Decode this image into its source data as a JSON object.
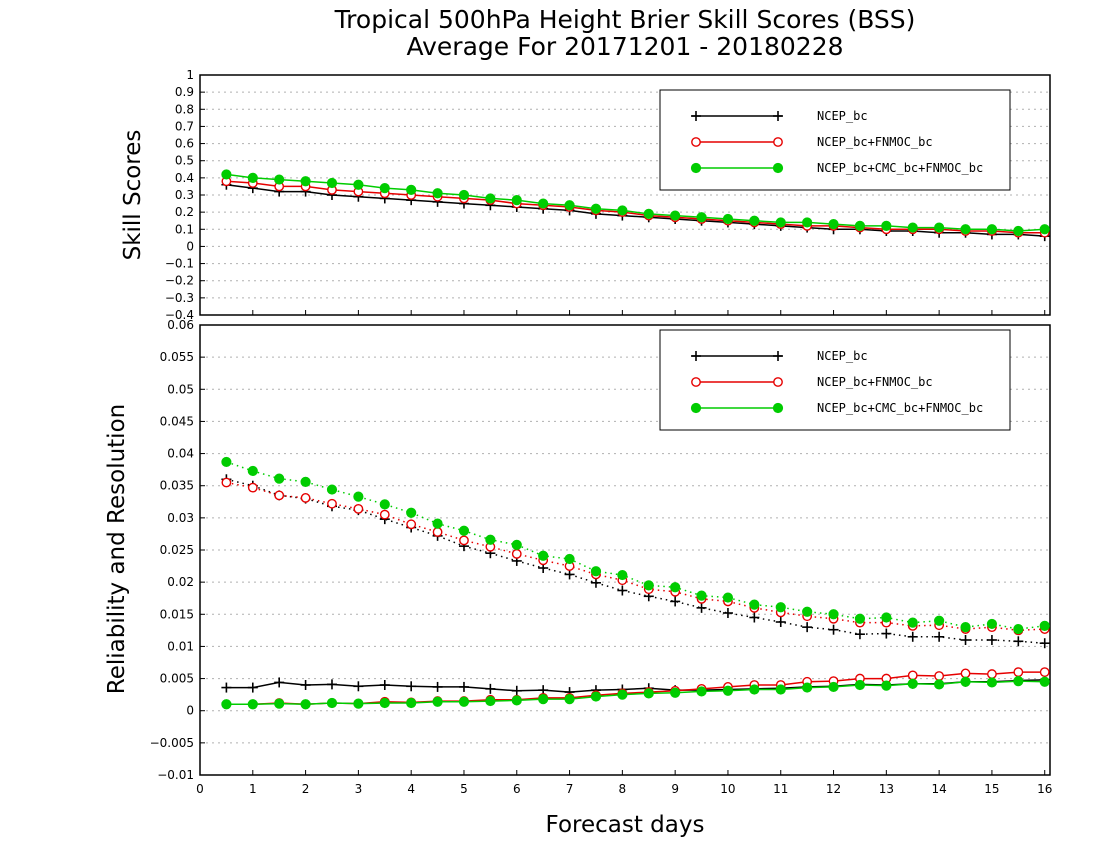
{
  "title_line1": "Tropical 500hPa Height Brier Skill Scores (BSS)",
  "title_line2": "Average For 20171201 - 20180228",
  "x_axis_label": "Forecast days",
  "top_panel_ylabel": "Skill Scores",
  "bottom_panel_ylabel": "Reliability and Resolution",
  "chart_data": [
    {
      "type": "line",
      "xlim": [
        0,
        16.1
      ],
      "ylim": [
        -0.4,
        1
      ],
      "xticks": [
        0,
        1,
        2,
        3,
        4,
        5,
        6,
        7,
        8,
        9,
        10,
        11,
        12,
        13,
        14,
        15,
        16
      ],
      "yticks": [
        -0.4,
        -0.3,
        -0.2,
        -0.1,
        0,
        0.1,
        0.2,
        0.3,
        0.4,
        0.5,
        0.6,
        0.7,
        0.8,
        0.9,
        1
      ],
      "ylabel": "Skill Scores",
      "xlabel": "Forecast days",
      "grid": true,
      "legend_position": "top-right",
      "x": [
        0.5,
        1,
        1.5,
        2,
        2.5,
        3,
        3.5,
        4,
        4.5,
        5,
        5.5,
        6,
        6.5,
        7,
        7.5,
        8,
        8.5,
        9,
        9.5,
        10,
        10.5,
        11,
        11.5,
        12,
        12.5,
        13,
        13.5,
        14,
        14.5,
        15,
        15.5,
        16
      ],
      "series": [
        {
          "name": "NCEP_bc",
          "color": "#000000",
          "marker": "plus",
          "line": "solid",
          "values": [
            0.36,
            0.34,
            0.32,
            0.32,
            0.3,
            0.29,
            0.28,
            0.27,
            0.26,
            0.25,
            0.24,
            0.23,
            0.22,
            0.21,
            0.19,
            0.18,
            0.17,
            0.16,
            0.15,
            0.14,
            0.13,
            0.12,
            0.11,
            0.1,
            0.1,
            0.09,
            0.09,
            0.08,
            0.08,
            0.07,
            0.07,
            0.06
          ]
        },
        {
          "name": "NCEP_bc+FNMOC_bc",
          "color": "#e60000",
          "marker": "open-circle",
          "line": "solid",
          "values": [
            0.38,
            0.37,
            0.35,
            0.35,
            0.33,
            0.32,
            0.31,
            0.3,
            0.29,
            0.28,
            0.27,
            0.25,
            0.24,
            0.23,
            0.21,
            0.2,
            0.18,
            0.17,
            0.16,
            0.15,
            0.14,
            0.13,
            0.12,
            0.12,
            0.11,
            0.1,
            0.1,
            0.1,
            0.09,
            0.09,
            0.08,
            0.08
          ]
        },
        {
          "name": "NCEP_bc+CMC_bc+FNMOC_bc",
          "color": "#00cc00",
          "marker": "filled-circle",
          "line": "solid",
          "values": [
            0.42,
            0.4,
            0.39,
            0.38,
            0.37,
            0.36,
            0.34,
            0.33,
            0.31,
            0.3,
            0.28,
            0.27,
            0.25,
            0.24,
            0.22,
            0.21,
            0.19,
            0.18,
            0.17,
            0.16,
            0.15,
            0.14,
            0.14,
            0.13,
            0.12,
            0.12,
            0.11,
            0.11,
            0.1,
            0.1,
            0.09,
            0.1
          ]
        }
      ]
    },
    {
      "type": "line",
      "xlim": [
        0,
        16.1
      ],
      "ylim": [
        -0.01,
        0.06
      ],
      "xticks": [
        0,
        1,
        2,
        3,
        4,
        5,
        6,
        7,
        8,
        9,
        10,
        11,
        12,
        13,
        14,
        15,
        16
      ],
      "yticks": [
        -0.01,
        -0.005,
        0,
        0.005,
        0.01,
        0.015,
        0.02,
        0.025,
        0.03,
        0.035,
        0.04,
        0.045,
        0.05,
        0.055,
        0.06
      ],
      "ylabel": "Reliability and Resolution",
      "xlabel": "Forecast days",
      "grid": true,
      "legend_position": "top-right",
      "x": [
        0.5,
        1,
        1.5,
        2,
        2.5,
        3,
        3.5,
        4,
        4.5,
        5,
        5.5,
        6,
        6.5,
        7,
        7.5,
        8,
        8.5,
        9,
        9.5,
        10,
        10.5,
        11,
        11.5,
        12,
        12.5,
        13,
        13.5,
        14,
        14.5,
        15,
        15.5,
        16
      ],
      "series": [
        {
          "name": "NCEP_bc",
          "color": "#000000",
          "marker": "plus",
          "line": "dotted",
          "values": [
            0.036,
            0.035,
            0.0335,
            0.033,
            0.0318,
            0.0312,
            0.0298,
            0.0285,
            0.0272,
            0.0256,
            0.0245,
            0.0233,
            0.0222,
            0.0212,
            0.0199,
            0.0187,
            0.0178,
            0.017,
            0.016,
            0.0152,
            0.0145,
            0.0138,
            0.013,
            0.0126,
            0.0119,
            0.012,
            0.0115,
            0.0115,
            0.011,
            0.011,
            0.0108,
            0.0105
          ]
        },
        {
          "name": "NCEP_bc+FNMOC_bc",
          "color": "#e60000",
          "marker": "open-circle",
          "line": "dotted",
          "values": [
            0.0355,
            0.0347,
            0.0335,
            0.0331,
            0.0322,
            0.0314,
            0.0305,
            0.029,
            0.0278,
            0.0265,
            0.0255,
            0.0244,
            0.0234,
            0.0225,
            0.0212,
            0.0203,
            0.0189,
            0.0185,
            0.0174,
            0.017,
            0.016,
            0.0153,
            0.0147,
            0.0143,
            0.0137,
            0.0137,
            0.0132,
            0.0133,
            0.0127,
            0.013,
            0.0125,
            0.0127
          ]
        },
        {
          "name": "NCEP_bc+CMC_bc+FNMOC_bc",
          "color": "#00cc00",
          "marker": "filled-circle",
          "line": "dotted",
          "values": [
            0.0387,
            0.0373,
            0.0361,
            0.0356,
            0.0344,
            0.0333,
            0.0321,
            0.0308,
            0.0291,
            0.028,
            0.0266,
            0.0258,
            0.0241,
            0.0236,
            0.0217,
            0.0211,
            0.0195,
            0.0192,
            0.0179,
            0.0176,
            0.0165,
            0.0161,
            0.0154,
            0.015,
            0.0143,
            0.0145,
            0.0137,
            0.014,
            0.013,
            0.0135,
            0.0127,
            0.0132
          ]
        },
        {
          "name": "NCEP_bc",
          "color": "#000000",
          "marker": "plus",
          "line": "solid",
          "values": [
            0.0036,
            0.0036,
            0.0044,
            0.004,
            0.0041,
            0.0038,
            0.004,
            0.0038,
            0.0037,
            0.0037,
            0.0034,
            0.0031,
            0.0032,
            0.0029,
            0.0032,
            0.0033,
            0.0035,
            0.0032,
            0.0032,
            0.0033,
            0.0034,
            0.0035,
            0.0037,
            0.0038,
            0.0041,
            0.004,
            0.0042,
            0.0042,
            0.0045,
            0.0045,
            0.0047,
            0.0048
          ]
        },
        {
          "name": "NCEP_bc+FNMOC_bc",
          "color": "#e60000",
          "marker": "open-circle",
          "line": "solid",
          "values": [
            0.001,
            0.001,
            0.0012,
            0.001,
            0.0012,
            0.0011,
            0.0014,
            0.0013,
            0.0015,
            0.0015,
            0.0017,
            0.0017,
            0.002,
            0.002,
            0.0024,
            0.0027,
            0.0029,
            0.0031,
            0.0034,
            0.0037,
            0.004,
            0.004,
            0.0045,
            0.0046,
            0.005,
            0.005,
            0.0055,
            0.0054,
            0.0058,
            0.0057,
            0.006,
            0.006
          ]
        },
        {
          "name": "NCEP_bc+CMC_bc+FNMOC_bc",
          "color": "#00cc00",
          "marker": "filled-circle",
          "line": "solid",
          "values": [
            0.001,
            0.001,
            0.0011,
            0.001,
            0.0012,
            0.0011,
            0.0012,
            0.0012,
            0.0014,
            0.0014,
            0.0015,
            0.0016,
            0.0018,
            0.0018,
            0.0022,
            0.0025,
            0.0027,
            0.0028,
            0.003,
            0.0031,
            0.0033,
            0.0033,
            0.0036,
            0.0037,
            0.004,
            0.0039,
            0.0042,
            0.0041,
            0.0045,
            0.0044,
            0.0046,
            0.0045
          ]
        }
      ]
    }
  ]
}
